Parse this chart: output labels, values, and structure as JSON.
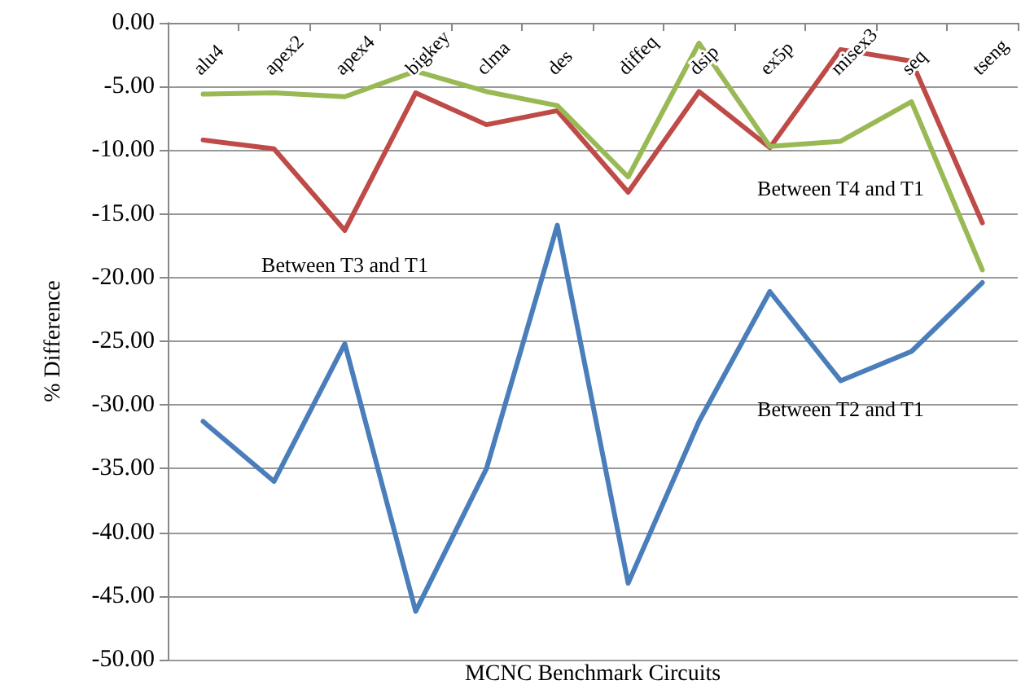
{
  "chart_data": {
    "type": "line",
    "xlabel": "MCNC Benchmark Circuits",
    "ylabel": "% Difference",
    "categories": [
      "alu4",
      "apex2",
      "apex4",
      "bigkey",
      "clma",
      "des",
      "diffeq",
      "dsip",
      "ex5p",
      "misex3",
      "seq",
      "tseng"
    ],
    "series": [
      {
        "name": "Between T2 and T1",
        "color": "#4a7ebb",
        "values": [
          -31.3,
          -36.0,
          -25.2,
          -46.2,
          -35.0,
          -15.9,
          -44.0,
          -31.3,
          -21.1,
          -28.1,
          -25.8,
          -20.4
        ]
      },
      {
        "name": "Between T3 and T1",
        "color": "#be4b48",
        "values": [
          -9.2,
          -9.9,
          -16.3,
          -5.5,
          -8.0,
          -6.9,
          -13.3,
          -5.4,
          -9.8,
          -2.1,
          -3.0,
          -15.7
        ]
      },
      {
        "name": "Between T4 and T1",
        "color": "#98b954",
        "values": [
          -5.6,
          -5.5,
          -5.8,
          -3.8,
          -5.4,
          -6.5,
          -12.1,
          -1.6,
          -9.7,
          -9.3,
          -6.2,
          -19.4
        ]
      }
    ],
    "ylim": [
      -50,
      0
    ],
    "yticks": [
      {
        "value": -50,
        "label": "-50.00"
      },
      {
        "value": -45,
        "label": "-45.00"
      },
      {
        "value": -40,
        "label": "-40.00"
      },
      {
        "value": -35,
        "label": "-35.00"
      },
      {
        "value": -30,
        "label": "-30.00"
      },
      {
        "value": -25,
        "label": "-25.00"
      },
      {
        "value": -20,
        "label": "-20.00"
      },
      {
        "value": -15,
        "label": "-15.00"
      },
      {
        "value": -10,
        "label": "-10.00"
      },
      {
        "value": -5,
        "label": "-5.00"
      },
      {
        "value": 0,
        "label": "0.00"
      }
    ],
    "grid": "y",
    "legend": false,
    "marker": "none",
    "line_style": "solid"
  }
}
